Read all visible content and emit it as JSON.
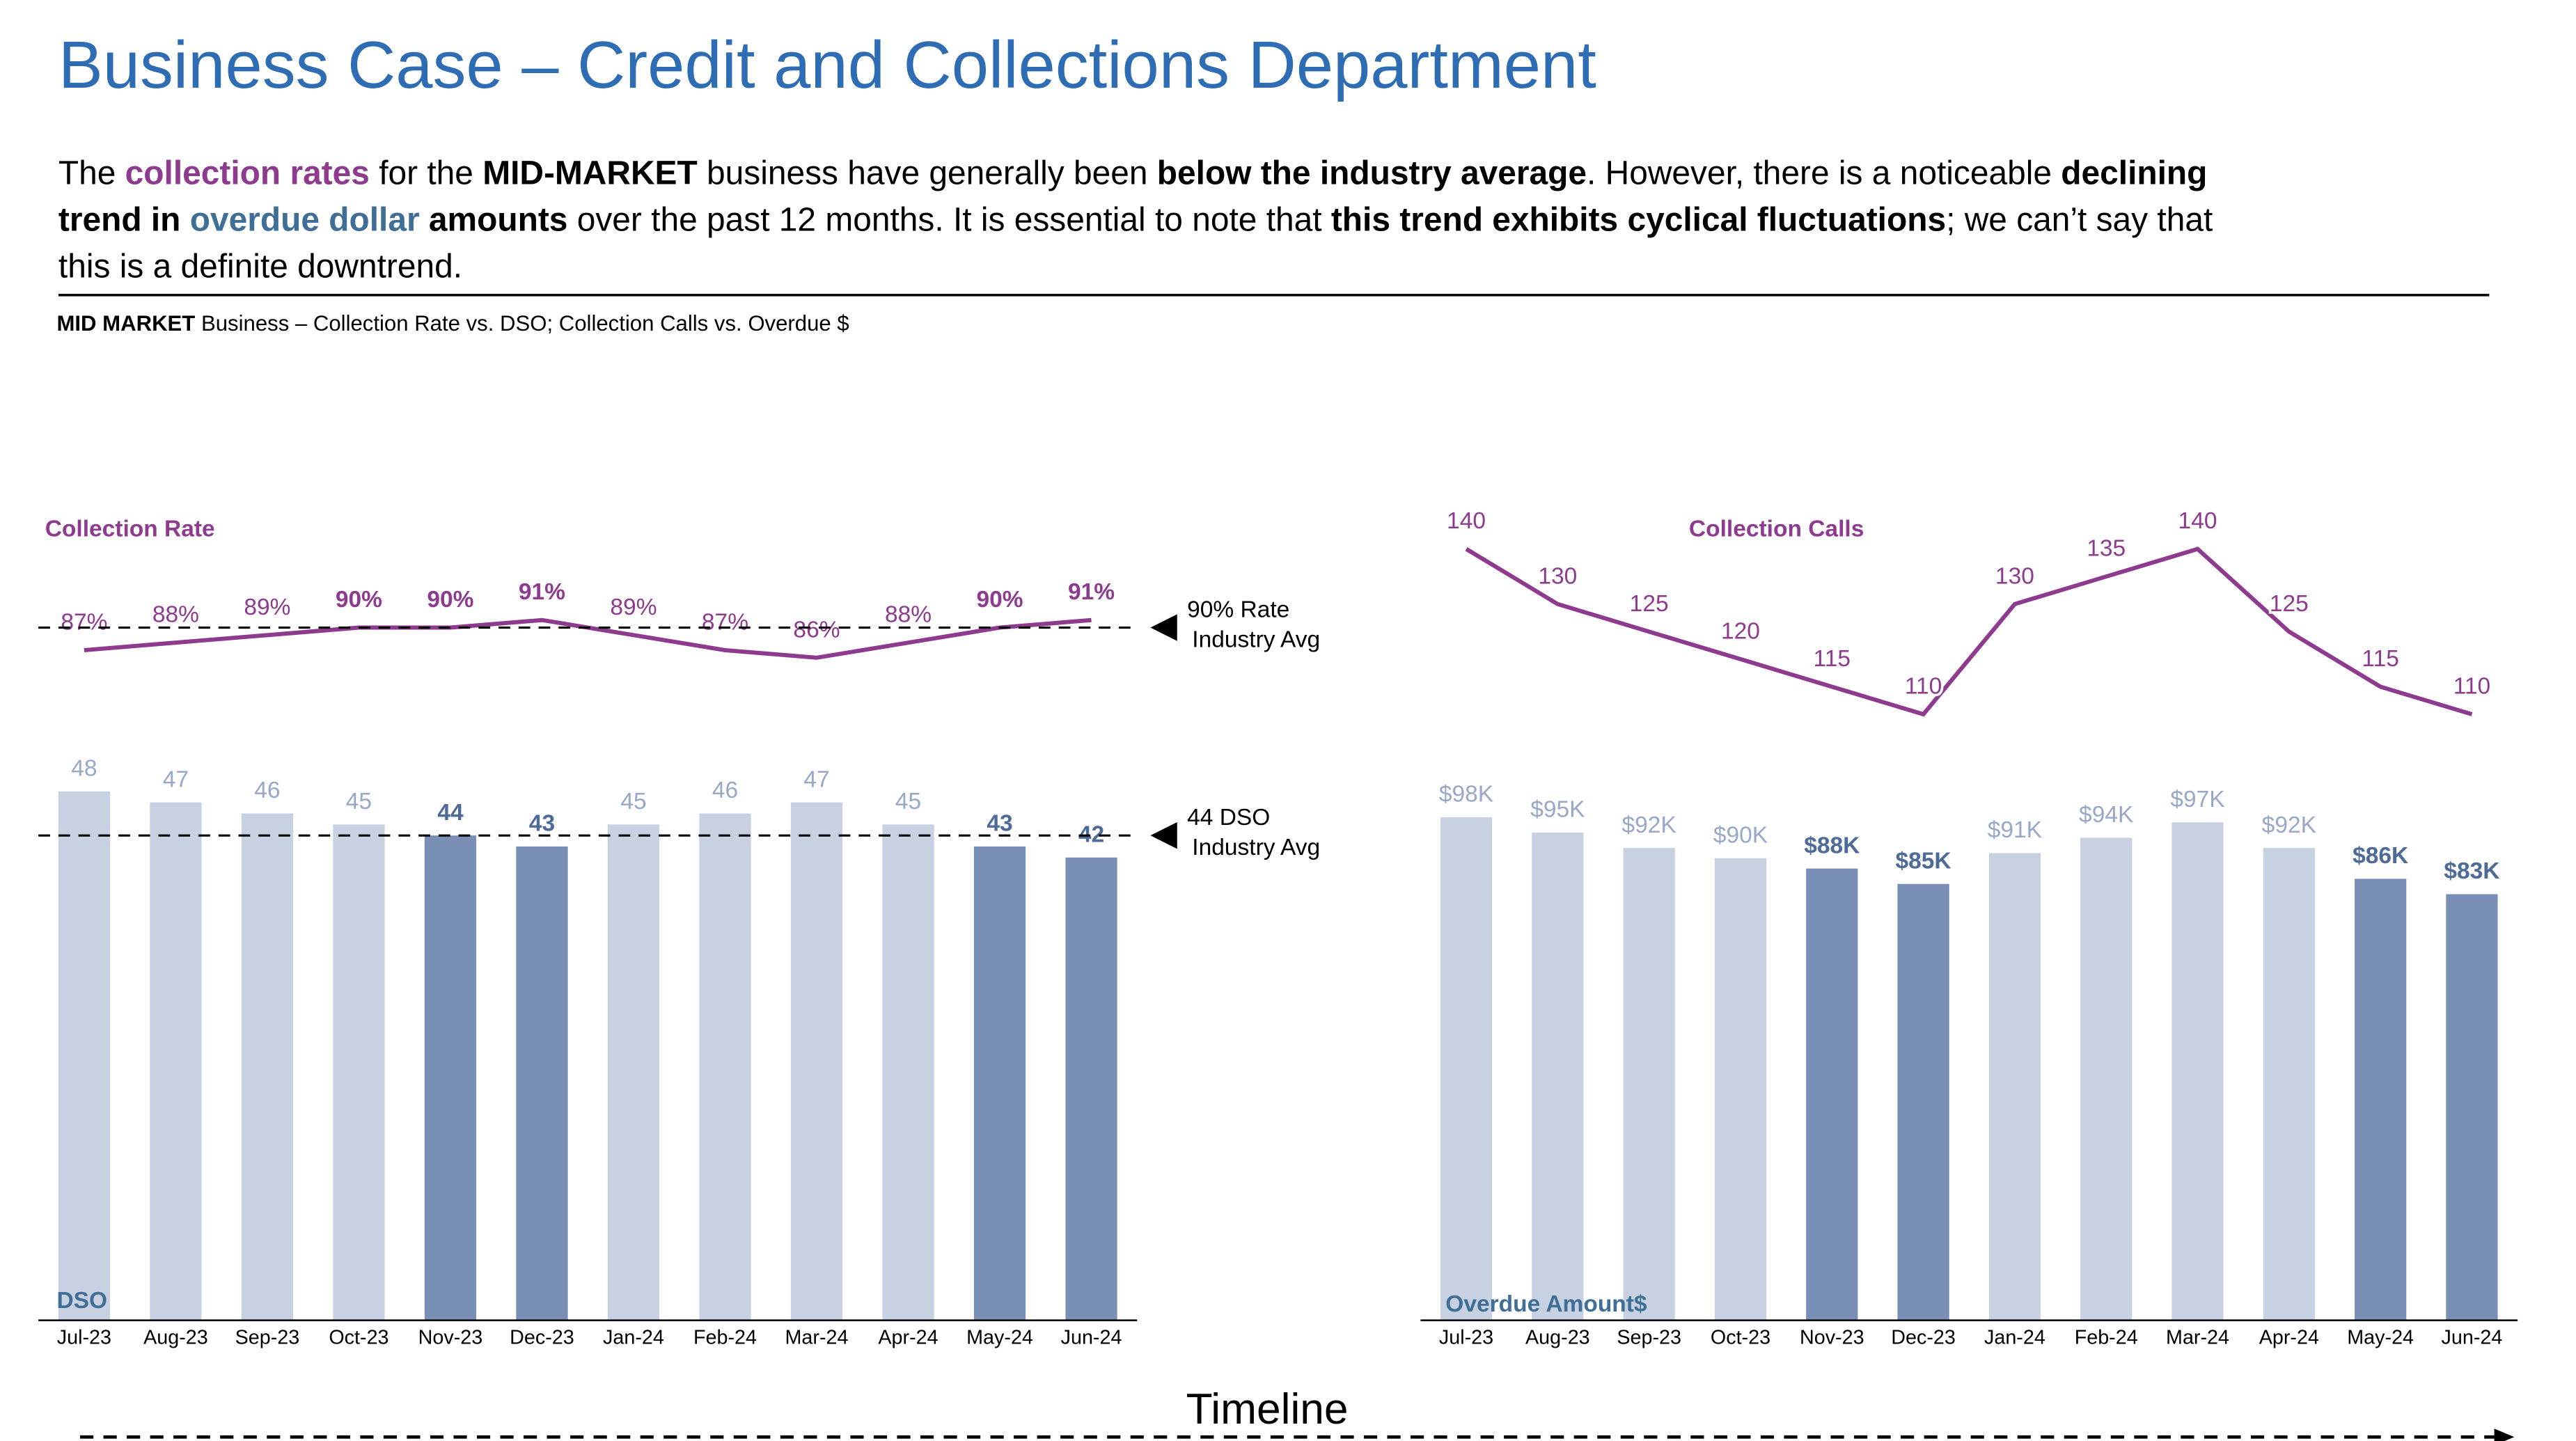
{
  "title": "Business Case – Credit and Collections Department",
  "description": [
    [
      {
        "text": "The "
      },
      {
        "text": "collection rates",
        "bold": true,
        "color": "#8e3a8e"
      },
      {
        "text": " for the "
      },
      {
        "text": "MID-MARKET",
        "bold": true
      },
      {
        "text": " business have generally been "
      },
      {
        "text": "below the industry average",
        "bold": true
      },
      {
        "text": ". However, there is a noticeable "
      },
      {
        "text": "declining",
        "bold": true
      }
    ],
    [
      {
        "text": "trend in ",
        "bold": true
      },
      {
        "text": "overdue dollar",
        "bold": true,
        "color": "#3f6f96"
      },
      {
        "text": " amounts",
        "bold": true
      },
      {
        "text": " over the past 12 months. It is essential to note that "
      },
      {
        "text": "this trend exhibits cyclical fluctuations",
        "bold": true
      },
      {
        "text": "; we can’t say that"
      }
    ],
    [
      {
        "text": "this is a definite downtrend."
      }
    ]
  ],
  "subtitle": [
    {
      "text": "MID MARKET",
      "bold": true
    },
    {
      "text": " Business – Collection Rate vs. DSO; Collection Calls vs. Overdue $"
    }
  ],
  "timeline": "Timeline",
  "chart_data": [
    {
      "type": "bar-line",
      "categories": [
        "Jul-23",
        "Aug-23",
        "Sep-23",
        "Oct-23",
        "Nov-23",
        "Dec-23",
        "Jan-24",
        "Feb-24",
        "Mar-24",
        "Apr-24",
        "May-24",
        "Jun-24"
      ],
      "ylim": [
        0,
        82
      ],
      "y2lim": [
        -2,
        118
      ],
      "series": [
        {
          "name": "DSO",
          "type": "bar",
          "colors": [
            "#c8d1e1",
            "#c8d1e1",
            "#c8d1e1",
            "#c8d1e1",
            "#7a8fb6",
            "#7a8fb6",
            "#c8d1e1",
            "#c8d1e1",
            "#c8d1e1",
            "#c8d1e1",
            "#7a8fb6",
            "#7a8fb6"
          ],
          "values": [
            48,
            47,
            46,
            45,
            44,
            43,
            45,
            46,
            47,
            45,
            43,
            42
          ]
        },
        {
          "name": "Collection Rate",
          "type": "line",
          "axis": "y2",
          "color": "#8e3a8e",
          "values": [
            87,
            88,
            89,
            90,
            90,
            91,
            89,
            87,
            86,
            88,
            90,
            91
          ],
          "value_labels": [
            "87%",
            "88%",
            "89%",
            "90%",
            "90%",
            "91%",
            "89%",
            "87%",
            "86%",
            "88%",
            "90%",
            "91%"
          ]
        }
      ],
      "reference_lines": [
        {
          "value": 90,
          "axis": "y2",
          "label": [
            "90% Rate",
            "Industry Avg"
          ]
        },
        {
          "value": 44,
          "label": [
            "44 DSO",
            "Industry Avg"
          ]
        }
      ]
    },
    {
      "type": "bar-line",
      "categories": [
        "Jul-23",
        "Aug-23",
        "Sep-23",
        "Oct-23",
        "Nov-23",
        "Dec-23",
        "Jan-24",
        "Feb-24",
        "Mar-24",
        "Apr-24",
        "May-24",
        "Jun-24"
      ],
      "ylim": [
        0,
        176000
      ],
      "y2lim": [
        0,
        164
      ],
      "series": [
        {
          "name": "Overdue Amount$",
          "type": "bar",
          "colors": [
            "#c8d1e1",
            "#c8d1e1",
            "#c8d1e1",
            "#c8d1e1",
            "#7a8fb6",
            "#7a8fb6",
            "#c8d1e1",
            "#c8d1e1",
            "#c8d1e1",
            "#c8d1e1",
            "#7a8fb6",
            "#7a8fb6"
          ],
          "values": [
            98000,
            95000,
            92000,
            90000,
            88000,
            85000,
            91000,
            94000,
            97000,
            92000,
            86000,
            83000
          ],
          "value_labels": [
            "$98K",
            "$95K",
            "$92K",
            "$90K",
            "$88K",
            "$85K",
            "$91K",
            "$94K",
            "$97K",
            "$92K",
            "$86K",
            "$83K"
          ]
        },
        {
          "name": "Collection Calls",
          "type": "line",
          "axis": "y2",
          "color": "#8e3a8e",
          "values": [
            140,
            130,
            125,
            120,
            115,
            110,
            130,
            135,
            140,
            125,
            115,
            110
          ]
        }
      ]
    }
  ]
}
